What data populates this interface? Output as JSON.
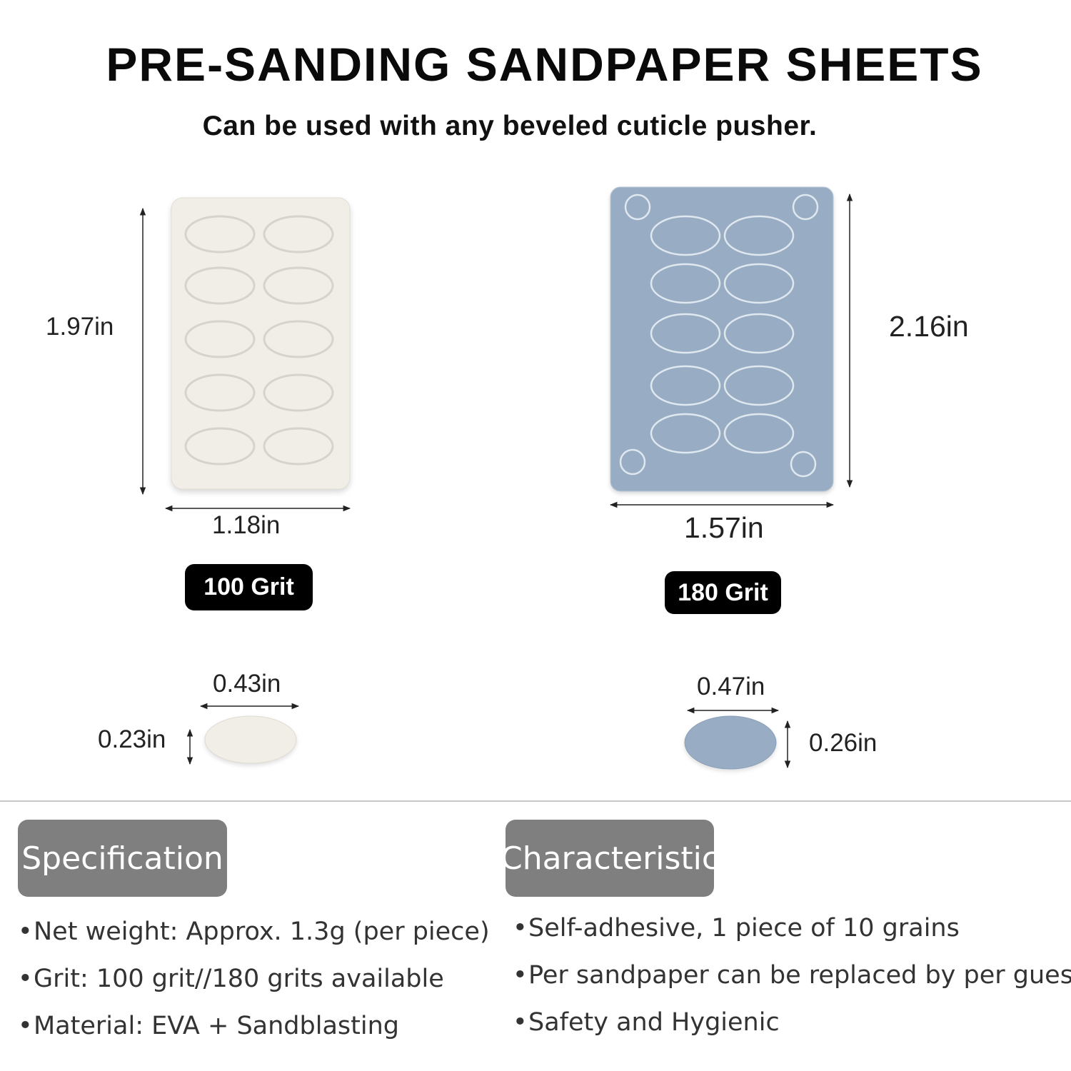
{
  "title": "PRE-SANDING SANDPAPER SHEETS",
  "subtitle": "Can be used with any beveled cuticle pusher.",
  "products": [
    {
      "grit": "100 Grit",
      "height": "1.97in",
      "width": "1.18in",
      "pad_width": "0.43in",
      "pad_height": "0.23in",
      "color": "#f1eee8"
    },
    {
      "grit": "180 Grit",
      "height": "2.16in",
      "width": "1.57in",
      "pad_width": "0.47in",
      "pad_height": "0.26in",
      "color": "#98adc4"
    }
  ],
  "specification": {
    "heading": "Specification",
    "items": [
      "Net weight: Approx. 1.3g (per piece)",
      "Grit: 100 grit//180 grits available",
      "Material: EVA + Sandblasting"
    ]
  },
  "characteristic": {
    "heading": "Characteristic",
    "items": [
      "Self-adhesive, 1 piece of 10 grains",
      "Per sandpaper can be replaced by per guest",
      "Safety and Hygienic"
    ]
  },
  "colors": {
    "header_bg": "#7f7f7f",
    "badge_bg": "#000000"
  }
}
